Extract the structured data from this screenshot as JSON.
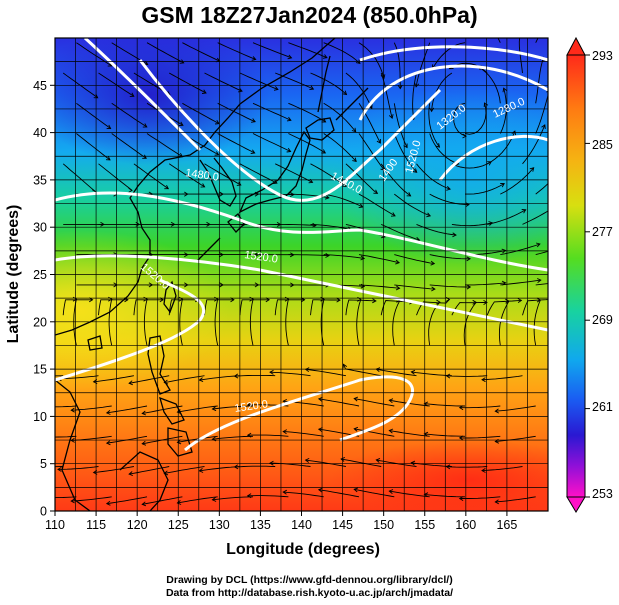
{
  "title": "GSM 18Z27Jan2024 (850.0hPa)",
  "x_axis": {
    "label": "Longitude (degrees)",
    "range": [
      110,
      170
    ],
    "ticks": [
      110,
      115,
      120,
      125,
      130,
      135,
      140,
      145,
      150,
      155,
      160,
      165
    ]
  },
  "y_axis": {
    "label": "Latitude  (degrees)",
    "range": [
      0,
      50
    ],
    "ticks": [
      0,
      5,
      10,
      15,
      20,
      25,
      30,
      35,
      40,
      45
    ]
  },
  "colorbar": {
    "range": [
      253,
      293
    ],
    "tick_labels": [
      "293",
      "285",
      "277",
      "269",
      "261",
      "253"
    ],
    "colors": [
      "#ff2a1a",
      "#ff7a12",
      "#f5b412",
      "#d8df10",
      "#55dd20",
      "#18d2a0",
      "#10a8ee",
      "#1a5cf2",
      "#2a18d2",
      "#9010d8",
      "#ff10c8"
    ]
  },
  "contour_labels": [
    "1480.0",
    "1440.0",
    "1400",
    "1520.0",
    "1320.0",
    "1280.0",
    "1520.0",
    "1520.0",
    "1520.0"
  ],
  "credits": {
    "line1": "Drawing by DCL (https://www.gfd-dennou.org/library/dcl/)",
    "line2": "Data from http://database.rish.kyoto-u.ac.jp/arch/jmadata/"
  }
}
